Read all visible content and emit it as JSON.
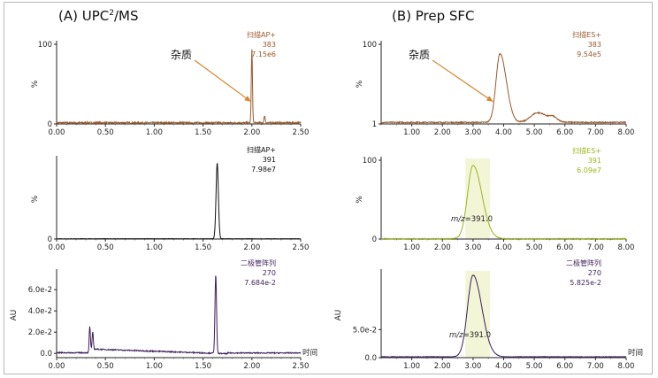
{
  "titles": {
    "left_prefix": "(A) UPC",
    "left_sup": "2",
    "left_suffix": "/MS",
    "right": "(B) Prep SFC"
  },
  "colors": {
    "brown": "#9a5a2c",
    "black": "#111111",
    "green": "#9ab61a",
    "purple": "#3c1f5c",
    "orange_arrow": "#d3882f",
    "highlight": "#f2f5d6"
  },
  "chart_data": [
    {
      "id": "A1",
      "type": "line",
      "series": [
        {
          "values": []
        }
      ],
      "legend": [
        "扫描AP+",
        "383",
        "7.15e6"
      ],
      "legend_color": "brown",
      "line_color": "brown",
      "xlim": [
        0,
        2.5
      ],
      "ylim": [
        0,
        100
      ],
      "xticks": [
        "0.00",
        "0.50",
        "1.00",
        "1.50",
        "2.00",
        "2.50"
      ],
      "ylabel": "%",
      "yticks": [
        {
          "v": 0,
          "t": "0"
        },
        {
          "v": 100,
          "t": "100"
        }
      ],
      "peaks": [
        {
          "x": 2.0,
          "h": 92,
          "w": 0.006
        },
        {
          "x": 2.13,
          "h": 9,
          "w": 0.006
        }
      ],
      "baseline": 1.5,
      "noise": 1.0,
      "annotation": {
        "text": "杂质",
        "arrow_to": [
          1.99,
          28
        ]
      }
    },
    {
      "id": "B1",
      "type": "line",
      "series": [
        {
          "values": []
        }
      ],
      "legend": [
        "扫描ES+",
        "383",
        "9.54e5"
      ],
      "legend_color": "brown",
      "line_color": "brown",
      "xlim": [
        0,
        8.0
      ],
      "ylim": [
        0,
        100
      ],
      "xticks": [
        "1.00",
        "2.00",
        "3.00",
        "4.00",
        "5.00",
        "6.00",
        "7.00",
        "8.00"
      ],
      "ylabel": "%",
      "yticks": [
        {
          "v": 0,
          "t": "1"
        },
        {
          "v": 100,
          "t": "100"
        }
      ],
      "peaks": [
        {
          "x": 3.88,
          "h": 86,
          "w": 0.13
        },
        {
          "x": 5.1,
          "h": 12,
          "w": 0.22
        },
        {
          "x": 5.6,
          "h": 4,
          "w": 0.08
        }
      ],
      "baseline": 2,
      "noise": 0.7,
      "annotation": {
        "text": "杂质",
        "arrow_to": [
          3.65,
          28
        ]
      }
    },
    {
      "id": "A2",
      "type": "line",
      "series": [
        {
          "values": []
        }
      ],
      "legend": [
        "扫描AP+",
        "391",
        "7.98e7"
      ],
      "legend_color": "black",
      "line_color": "black",
      "xlim": [
        0,
        2.5
      ],
      "ylim": [
        0,
        100
      ],
      "xticks": [
        "0.00",
        "0.50",
        "1.00",
        "1.50",
        "2.00",
        "2.50"
      ],
      "ylabel": "%",
      "yticks": [
        {
          "v": 0,
          "t": "0"
        }
      ],
      "peaks": [
        {
          "x": 1.645,
          "h": 95,
          "w": 0.012
        }
      ],
      "baseline": 0.3,
      "noise": 0.2
    },
    {
      "id": "B2",
      "type": "line",
      "series": [
        {
          "values": []
        }
      ],
      "legend": [
        "扫描ES+",
        "391",
        "6.09e7"
      ],
      "legend_color": "green",
      "line_color": "green",
      "xlim": [
        0,
        8.0
      ],
      "ylim": [
        0,
        100
      ],
      "xticks": [
        "1.00",
        "2.00",
        "3.00",
        "4.00",
        "5.00",
        "6.00",
        "7.00",
        "8.00"
      ],
      "ylabel": "%",
      "yticks": [
        {
          "v": 0,
          "t": "0"
        },
        {
          "v": 100,
          "t": "100"
        }
      ],
      "peaks": [
        {
          "x": 3.0,
          "h": 93,
          "w": 0.18
        }
      ],
      "baseline": 0.5,
      "noise": 0.4,
      "highlight": [
        2.75,
        3.55
      ],
      "mz_label": {
        "prefix": "m/z",
        "value": "=391.0"
      }
    },
    {
      "id": "A3",
      "type": "line",
      "series": [
        {
          "values": []
        }
      ],
      "legend": [
        "二极管阵列",
        "270",
        "7.684e-2"
      ],
      "legend_color": "purple",
      "line_color": "purple",
      "xlim": [
        0,
        2.5
      ],
      "ylim": [
        -0.004,
        0.076
      ],
      "xticks": [
        "0.00",
        "0.50",
        "1.00",
        "1.50",
        "2.00",
        "2.50"
      ],
      "ylabel": "AU",
      "yticks": [
        {
          "v": 0,
          "t": "0.0"
        },
        {
          "v": 0.02,
          "t": "2.0e-2"
        },
        {
          "v": 0.04,
          "t": "4.0e-2"
        },
        {
          "v": 0.06,
          "t": "6.0e-2"
        }
      ],
      "peaks": [
        {
          "x": 0.34,
          "h": 0.021,
          "w": 0.006
        },
        {
          "x": 0.37,
          "h": 0.016,
          "w": 0.006
        },
        {
          "x": 1.63,
          "h": 0.074,
          "w": 0.008
        }
      ],
      "baseline_fn": "uv",
      "noise": 0.0005,
      "xunit": "时间"
    },
    {
      "id": "B3",
      "type": "line",
      "series": [
        {
          "values": []
        }
      ],
      "legend": [
        "二极管阵列",
        "270",
        "5.825e-2"
      ],
      "legend_color": "purple",
      "line_color": "purple",
      "xlim": [
        0,
        8.0
      ],
      "ylim": [
        0,
        100
      ],
      "xticks": [
        "1.00",
        "2.00",
        "3.00",
        "4.00",
        "5.00",
        "6.00",
        "7.00",
        "8.00"
      ],
      "ylabel": "AU",
      "yticks": [
        {
          "v": 0,
          "t": "0.0"
        },
        {
          "v": 33,
          "t": "5.0e-2"
        }
      ],
      "peaks": [
        {
          "x": 3.0,
          "h": 96,
          "w": 0.18
        }
      ],
      "baseline": 1,
      "noise": 0.3,
      "highlight": [
        2.75,
        3.55
      ],
      "mz_label": {
        "prefix": "m/z",
        "value": "=391.0"
      },
      "xunit": "时间"
    }
  ]
}
